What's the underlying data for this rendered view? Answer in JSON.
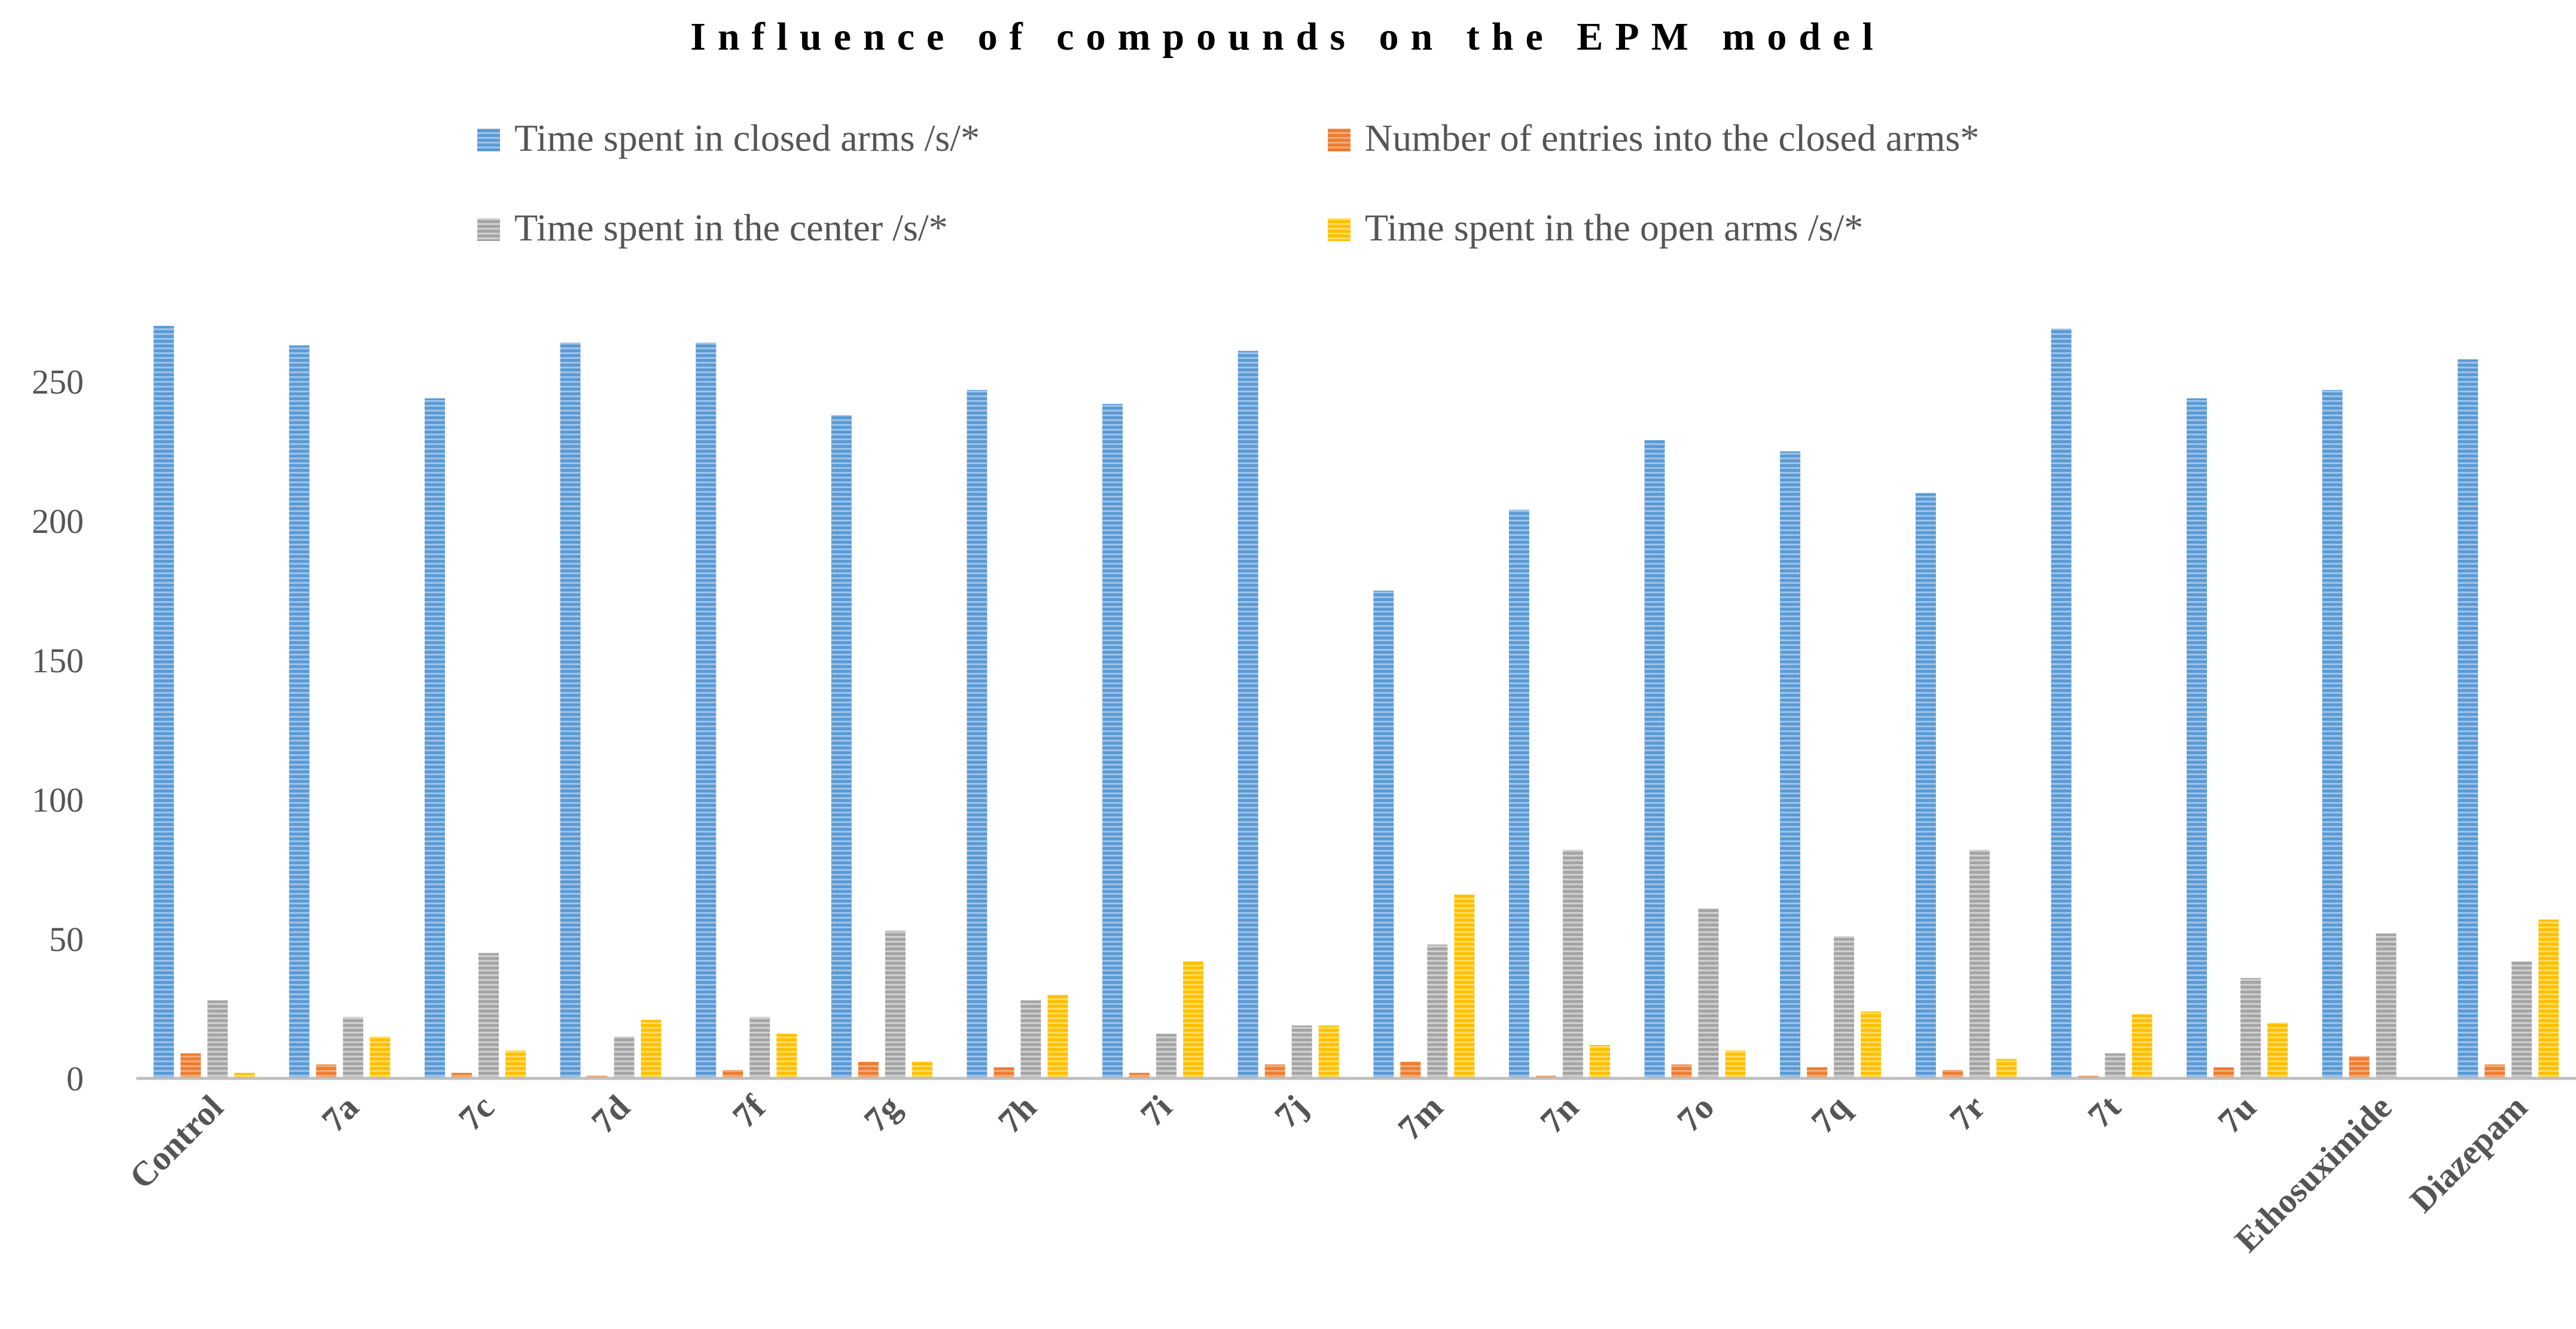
{
  "chart_data": {
    "type": "bar",
    "title": "Influence of compounds on the EPM model",
    "xlabel": "",
    "ylabel": "",
    "ylim": [
      0,
      270
    ],
    "yticks": [
      0,
      50,
      100,
      150,
      200,
      250
    ],
    "grid": false,
    "legend_position": "top",
    "categories": [
      "Control",
      "7a",
      "7c",
      "7d",
      "7f",
      "7g",
      "7h",
      "7i",
      "7j",
      "7m",
      "7n",
      "7o",
      "7q",
      "7r",
      "7t",
      "7u",
      "Ethosuximide",
      "Diazepam"
    ],
    "series": [
      {
        "name": "Time spent in closed arms /s/*",
        "color": "#5b9bd5",
        "values": [
          270,
          263,
          244,
          264,
          264,
          238,
          247,
          242,
          261,
          175,
          204,
          229,
          225,
          210,
          269,
          244,
          247,
          258
        ]
      },
      {
        "name": "Number of entries into the closed arms*",
        "color": "#ed7d31",
        "values": [
          9,
          5,
          2,
          1,
          3,
          6,
          4,
          2,
          5,
          6,
          1,
          5,
          4,
          3,
          1,
          4,
          8,
          5
        ]
      },
      {
        "name": "Time spent in the center /s/*",
        "color": "#a5a5a5",
        "values": [
          28,
          22,
          45,
          15,
          22,
          53,
          28,
          16,
          19,
          48,
          82,
          61,
          51,
          82,
          9,
          36,
          52,
          42
        ]
      },
      {
        "name": "Time spent in the open arms /s/*",
        "color": "#ffc000",
        "values": [
          2,
          15,
          10,
          21,
          16,
          6,
          30,
          42,
          19,
          66,
          12,
          10,
          24,
          7,
          23,
          20,
          0,
          57
        ]
      }
    ]
  }
}
